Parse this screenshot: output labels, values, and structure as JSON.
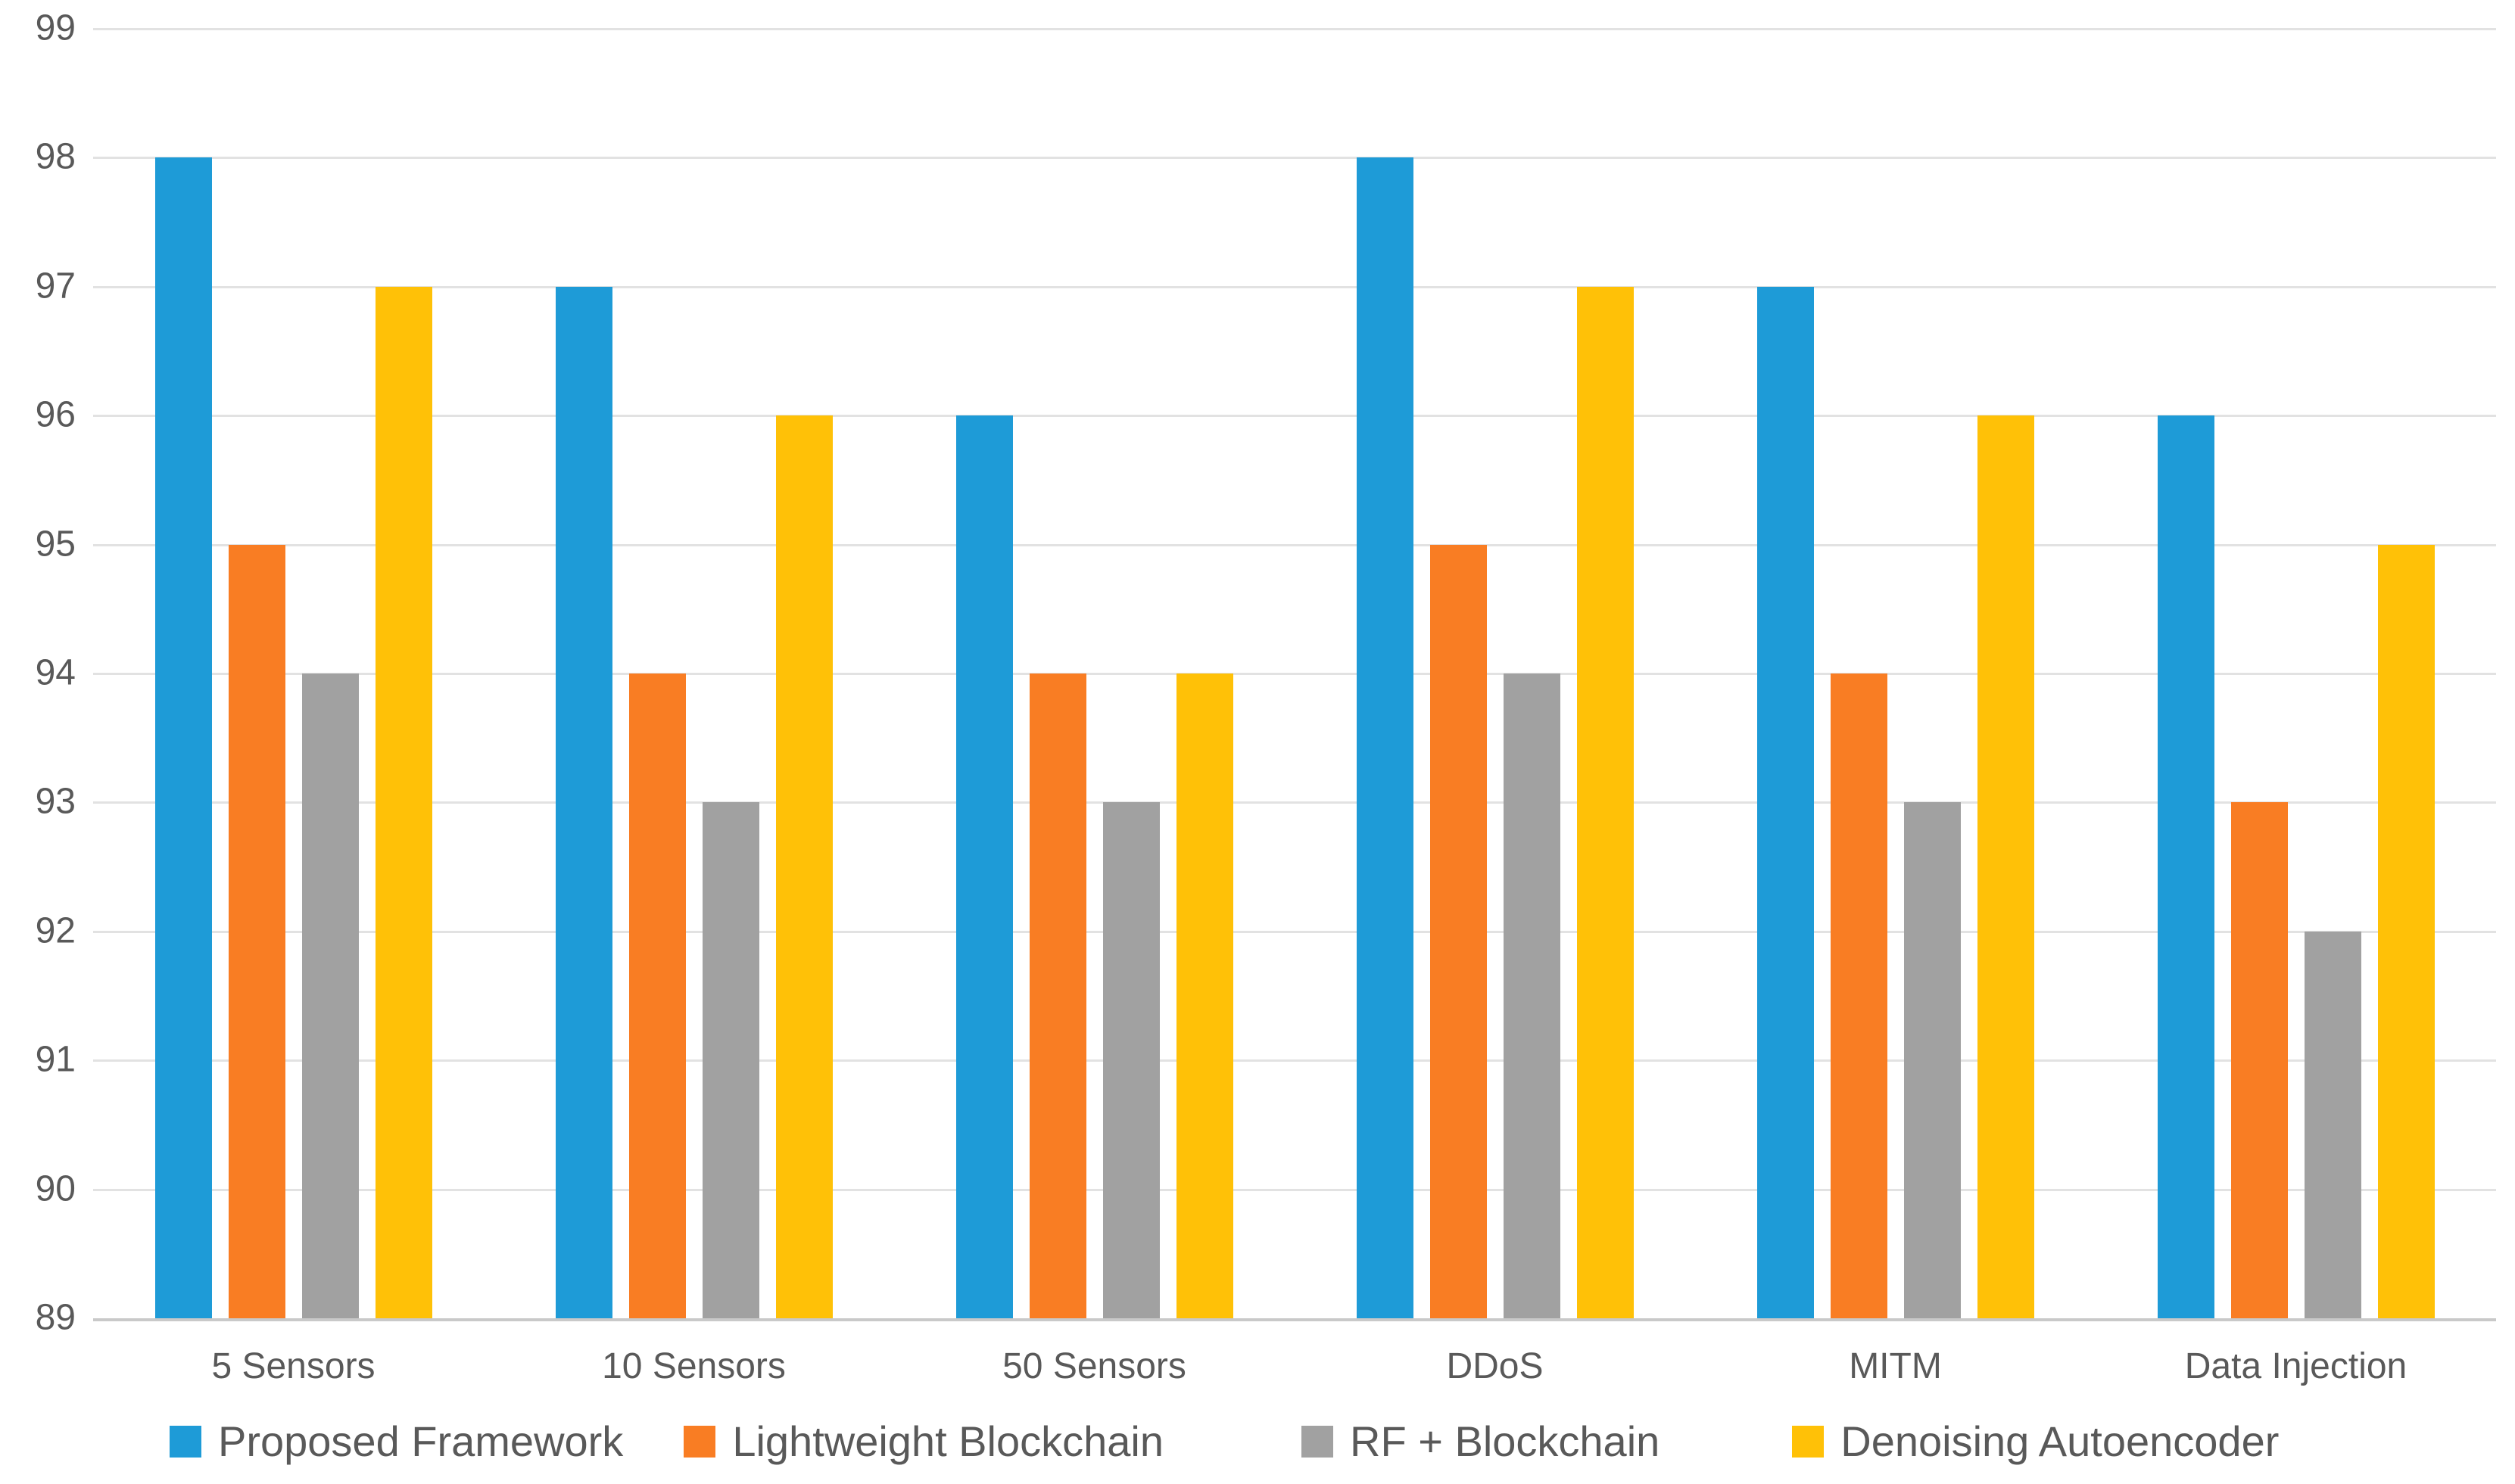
{
  "chart_data": {
    "type": "bar",
    "title": "",
    "xlabel": "",
    "ylabel": "",
    "categories": [
      "5 Sensors",
      "10 Sensors",
      "50 Sensors",
      "DDoS",
      "MITM",
      "Data Injection"
    ],
    "series": [
      {
        "name": "Proposed Framework",
        "color": "#1E9BD7",
        "values": [
          98,
          97,
          96,
          98,
          97,
          96
        ]
      },
      {
        "name": "Lightweight Blockchain",
        "color": "#F97D23",
        "values": [
          95,
          94,
          94,
          95,
          94,
          93
        ]
      },
      {
        "name": "RF + Blockchain",
        "color": "#A1A1A1",
        "values": [
          94,
          93,
          93,
          94,
          93,
          92
        ]
      },
      {
        "name": "Denoising Autoencoder",
        "color": "#FFC107",
        "values": [
          97,
          96,
          94,
          97,
          96,
          95
        ]
      }
    ],
    "ylim": [
      89,
      99
    ],
    "yticks": [
      "99",
      "98",
      "97",
      "96",
      "95",
      "94",
      "93",
      "92",
      "91",
      "90",
      "89"
    ],
    "grid": true,
    "legend_position": "bottom",
    "background_color": "#FFFFFF",
    "gridline_color": "#E2E2E2",
    "axis_line_color": "#C9C9C9",
    "text_color": "#595959"
  }
}
